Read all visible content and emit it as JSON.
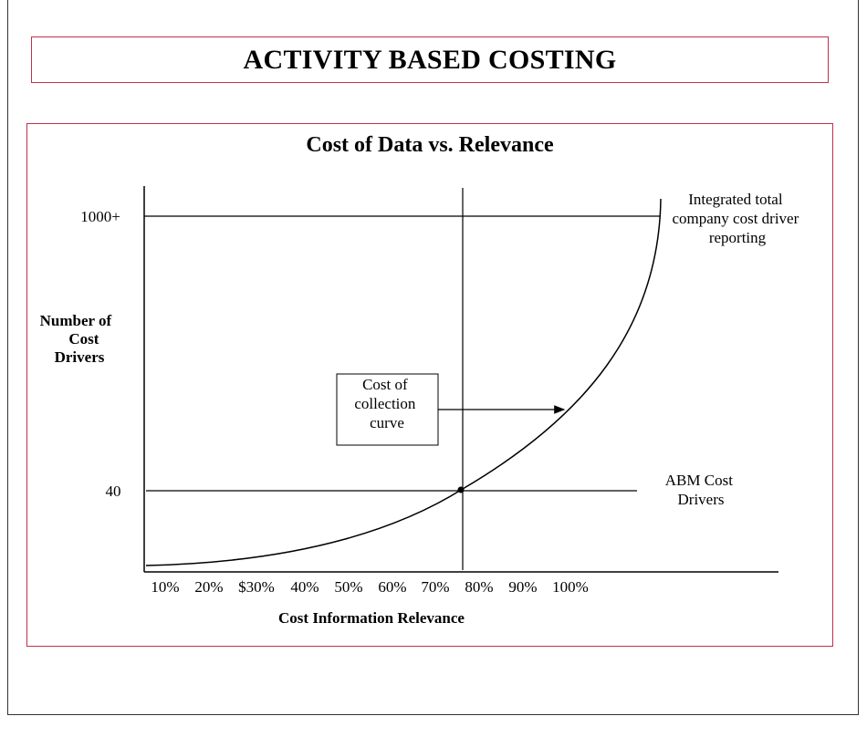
{
  "header": {
    "title": "ACTIVITY BASED COSTING"
  },
  "chart_data": {
    "type": "line",
    "title": "Cost of Data vs. Relevance",
    "xlabel": "Cost Information Relevance",
    "ylabel_lines": [
      "Number of",
      "Cost",
      "Drivers"
    ],
    "x_ticks": [
      "10%",
      "20%",
      "$30%",
      "40%",
      "50%",
      "60%",
      "70%",
      "80%",
      "90%",
      "100%"
    ],
    "y_ticks": [
      "40",
      "1000+"
    ],
    "reference_lines": {
      "horizontal": [
        {
          "level": "40",
          "label_lines": [
            "ABM Cost",
            "Drivers"
          ]
        },
        {
          "level": "1000+",
          "label_lines": [
            "Integrated total",
            "company cost driver",
            "reporting"
          ]
        }
      ],
      "vertical": {
        "approx_percent": 75
      }
    },
    "series": [
      {
        "curve": "exponential",
        "intersection": {
          "x_percent": 75,
          "y_level": "40"
        }
      }
    ],
    "annotation": {
      "lines": [
        "Cost of",
        "collection",
        "curve"
      ]
    },
    "grid": false,
    "legend": "none"
  }
}
